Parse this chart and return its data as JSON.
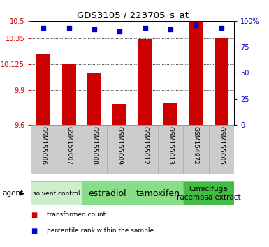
{
  "title": "GDS3105 / 223705_s_at",
  "samples": [
    "GSM155006",
    "GSM155007",
    "GSM155008",
    "GSM155009",
    "GSM155012",
    "GSM155013",
    "GSM154972",
    "GSM155005"
  ],
  "bar_values": [
    10.21,
    10.125,
    10.05,
    9.78,
    10.345,
    9.79,
    10.49,
    10.35
  ],
  "percentile_values": [
    93,
    93,
    92,
    90,
    93,
    92,
    96,
    93
  ],
  "ylim_left": [
    9.6,
    10.5
  ],
  "ylim_right": [
    0,
    100
  ],
  "yticks_left": [
    9.6,
    9.9,
    10.125,
    10.35,
    10.5
  ],
  "ytick_labels_left": [
    "9.6",
    "9.9",
    "10.125",
    "10.35",
    "10.5"
  ],
  "yticks_right": [
    0,
    25,
    50,
    75,
    100
  ],
  "ytick_labels_right": [
    "0",
    "25",
    "50",
    "75",
    "100%"
  ],
  "grid_values": [
    9.9,
    10.125,
    10.35
  ],
  "bar_color": "#cc0000",
  "scatter_color": "#0000cc",
  "bar_width": 0.55,
  "agent_groups": [
    {
      "label": "solvent control",
      "start": 0,
      "end": 2,
      "color": "#cceecc",
      "fontsize": 6.5
    },
    {
      "label": "estradiol",
      "start": 2,
      "end": 4,
      "color": "#88dd88",
      "fontsize": 9
    },
    {
      "label": "tamoxifen",
      "start": 4,
      "end": 6,
      "color": "#88dd88",
      "fontsize": 9
    },
    {
      "label": "Cimicifuga\nracemosa extract",
      "start": 6,
      "end": 8,
      "color": "#44bb44",
      "fontsize": 7.5
    }
  ],
  "legend_items": [
    {
      "label": "transformed count",
      "color": "#cc0000"
    },
    {
      "label": "percentile rank within the sample",
      "color": "#0000cc"
    }
  ],
  "tick_bg_color": "#cccccc",
  "cell_edge_color": "#aaaaaa"
}
